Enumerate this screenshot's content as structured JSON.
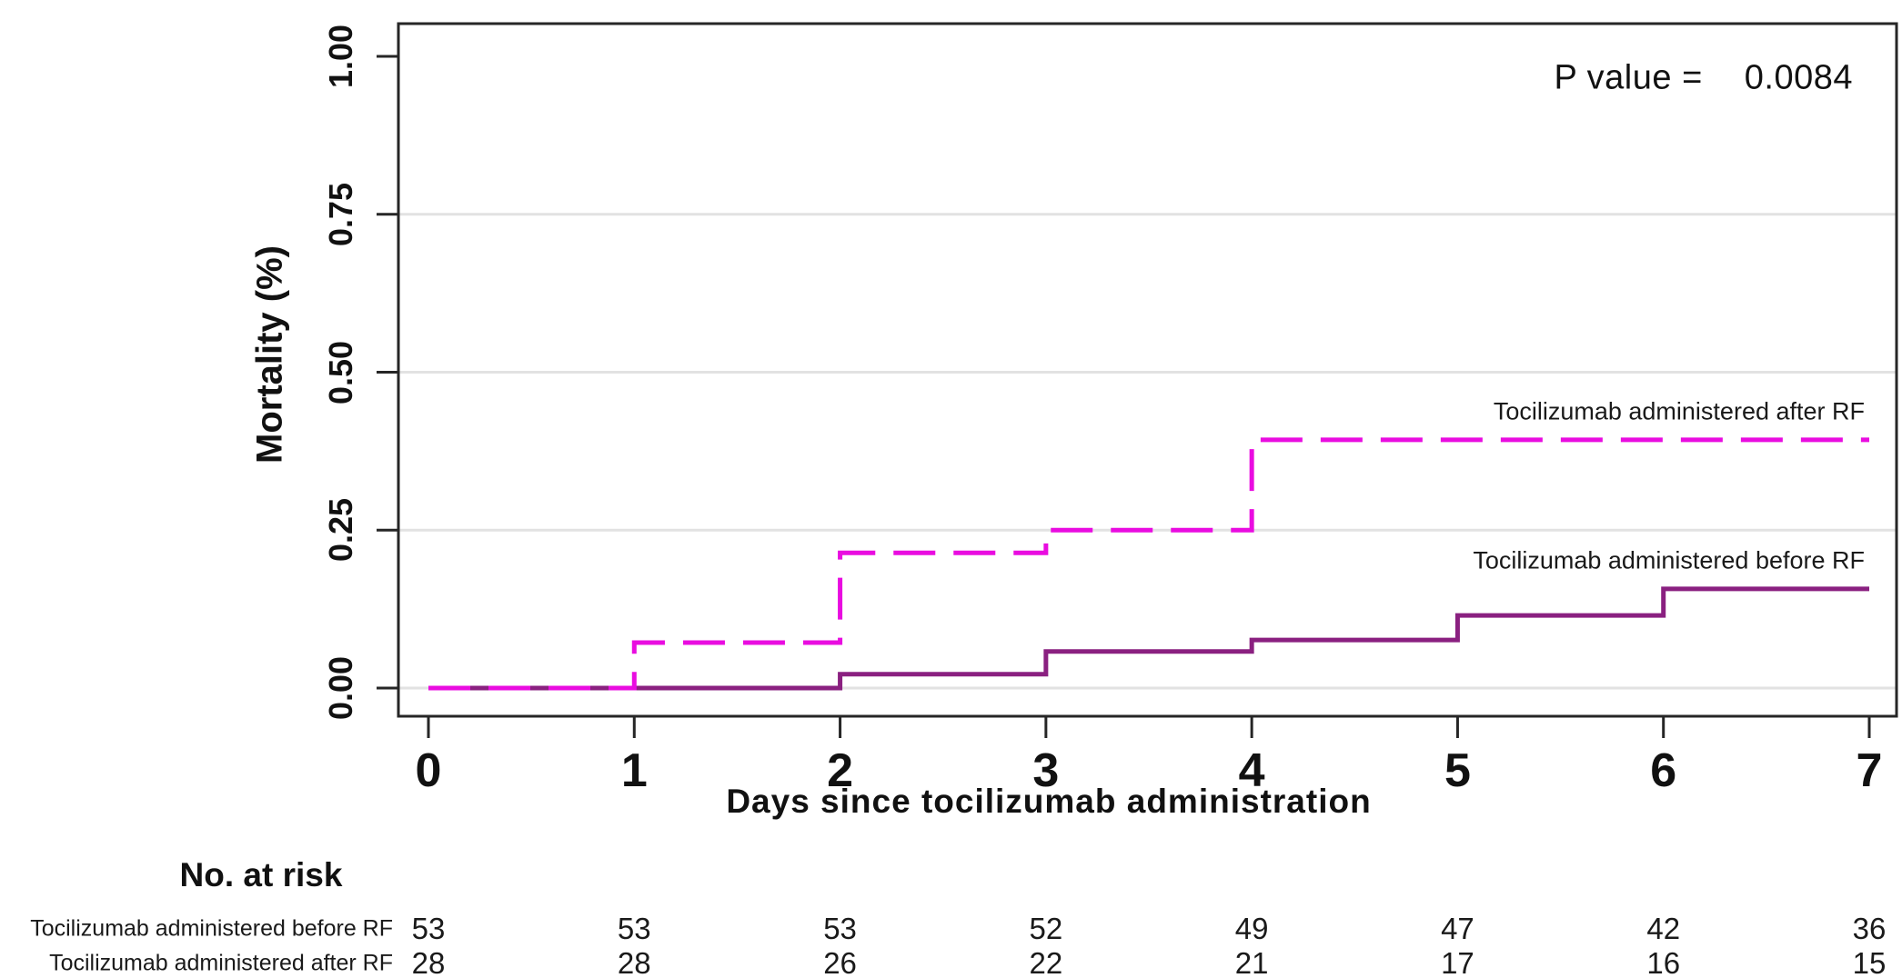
{
  "figure": {
    "p_label": "P value =",
    "p_value": "0.0084",
    "x_axis": {
      "title": "Days since tocilizumab administration",
      "ticks": [
        "0",
        "1",
        "2",
        "3",
        "4",
        "5",
        "6",
        "7"
      ]
    },
    "y_axis": {
      "title": "Mortality (%)",
      "ticks": [
        "0.00",
        "0.25",
        "0.50",
        "0.75",
        "1.00"
      ]
    }
  },
  "chart_data": {
    "type": "line",
    "subtype": "kaplan-meier-cumulative-mortality-step",
    "title": "",
    "xlabel": "Days since tocilizumab administration",
    "ylabel": "Mortality (%)",
    "xlim": [
      0,
      7
    ],
    "ylim": [
      0,
      1
    ],
    "x_ticks": [
      0,
      1,
      2,
      3,
      4,
      5,
      6,
      7
    ],
    "y_ticks": [
      0,
      0.25,
      0.5,
      0.75,
      1
    ],
    "grid": "horizontal",
    "gridline_values": [
      0,
      0.25,
      0.5,
      0.75
    ],
    "p_value": 0.0084,
    "legend_position": "labels-at-line-ends",
    "series": [
      {
        "name": "Tocilizumab administered after RF",
        "color": "#E90CE0",
        "line_style": "dashed",
        "start": [
          0,
          0
        ],
        "steps": [
          [
            1,
            0.072
          ],
          [
            2,
            0.214
          ],
          [
            3,
            0.25
          ],
          [
            4,
            0.393
          ]
        ],
        "end_x": 7
      },
      {
        "name": "Tocilizumab administered before RF",
        "color": "#8A2080",
        "line_style": "solid",
        "start": [
          0,
          0
        ],
        "steps": [
          [
            2,
            0.022
          ],
          [
            3,
            0.058
          ],
          [
            4,
            0.076
          ],
          [
            5,
            0.115
          ],
          [
            6,
            0.157
          ]
        ],
        "end_x": 7
      }
    ]
  },
  "risk_table": {
    "title": "No. at risk",
    "time_points": [
      0,
      1,
      2,
      3,
      4,
      5,
      6,
      7
    ],
    "rows": [
      {
        "label": "Tocilizumab administered before RF",
        "values": [
          "53",
          "53",
          "53",
          "52",
          "49",
          "47",
          "42",
          "36"
        ]
      },
      {
        "label": "Tocilizumab administered after RF",
        "values": [
          "28",
          "28",
          "26",
          "22",
          "21",
          "17",
          "16",
          "15"
        ]
      }
    ]
  }
}
